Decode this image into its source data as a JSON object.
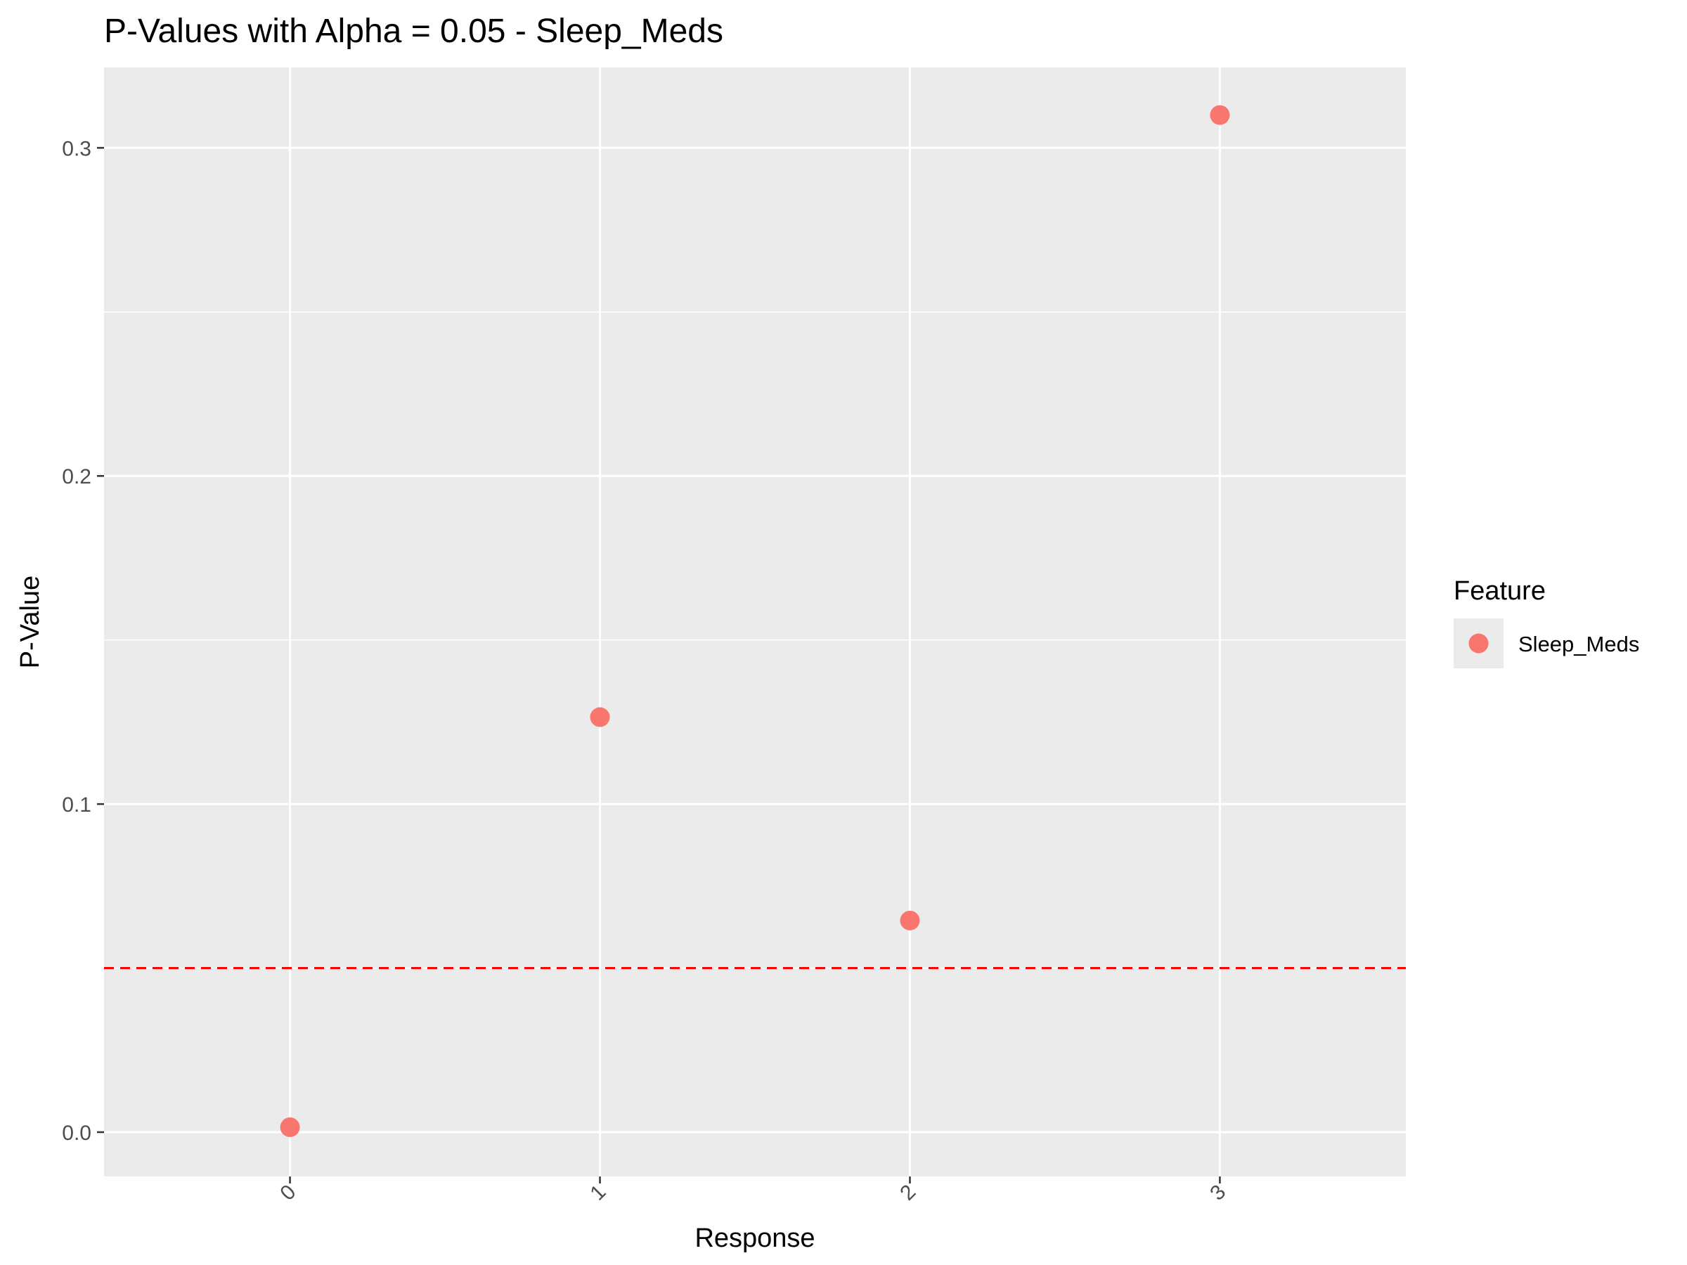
{
  "chart_data": {
    "type": "scatter",
    "title": "P-Values with Alpha = 0.05 - Sleep_Meds",
    "xlabel": "Response",
    "ylabel": "P-Value",
    "categories": [
      "0",
      "1",
      "2",
      "3"
    ],
    "series": [
      {
        "name": "Sleep_Meds",
        "values": [
          0.0015,
          0.1265,
          0.0645,
          0.31
        ]
      }
    ],
    "ylim": [
      -0.0135,
      0.3245
    ],
    "y_ticks": [
      0.0,
      0.1,
      0.2,
      0.3
    ],
    "y_tick_labels": [
      "0.0",
      "0.1",
      "0.2",
      "0.3"
    ],
    "threshold": {
      "value": 0.05,
      "color": "#ff0000",
      "style": "dashed"
    },
    "point_color": "#f8766d",
    "panel_background": "#ebebeb",
    "grid": true,
    "legend": {
      "title": "Feature",
      "position": "right"
    },
    "x_tick_rotation": "45"
  }
}
